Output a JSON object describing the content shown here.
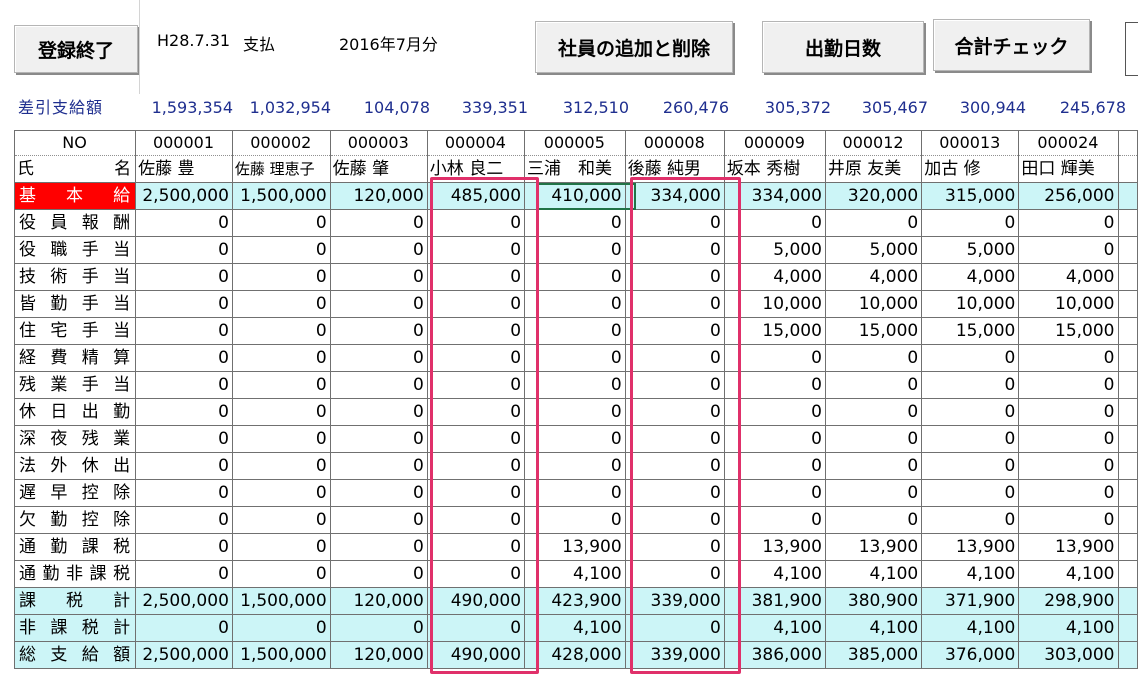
{
  "toolbar": {
    "register_done": "登録終了",
    "date_label": "H28.7.31",
    "pay_label": "支払",
    "period_label": "2016年7月分",
    "add_remove_employee": "社員の追加と削除",
    "attendance_days": "出勤日数",
    "total_check": "合計チェック"
  },
  "net_pay": {
    "label": "差引支給額",
    "values": [
      "1,593,354",
      "1,032,954",
      "104,078",
      "339,351",
      "312,510",
      "260,476",
      "305,372",
      "305,467",
      "300,944",
      "245,678"
    ]
  },
  "sheet": {
    "no_label": "NO",
    "name_label": [
      "氏",
      "名"
    ],
    "employee_ids": [
      "000001",
      "000002",
      "000003",
      "000004",
      "000005",
      "000008",
      "000009",
      "000012",
      "000013",
      "000024"
    ],
    "employee_names": [
      "佐藤 豊",
      "佐藤 理恵子",
      "佐藤 肇",
      "小林 良二",
      "三浦　和美",
      "後藤 純男",
      "坂本 秀樹",
      "井原 友美",
      "加古 修",
      "田口 輝美"
    ],
    "rows": [
      {
        "label": "基本給",
        "values": [
          "2,500,000",
          "1,500,000",
          "120,000",
          "485,000",
          "410,000",
          "334,000",
          "334,000",
          "320,000",
          "315,000",
          "256,000"
        ]
      },
      {
        "label": "役員報酬",
        "values": [
          "0",
          "0",
          "0",
          "0",
          "0",
          "0",
          "0",
          "0",
          "0",
          "0"
        ]
      },
      {
        "label": "役職手当",
        "values": [
          "0",
          "0",
          "0",
          "0",
          "0",
          "0",
          "5,000",
          "5,000",
          "5,000",
          "0"
        ]
      },
      {
        "label": "技術手当",
        "values": [
          "0",
          "0",
          "0",
          "0",
          "0",
          "0",
          "4,000",
          "4,000",
          "4,000",
          "4,000"
        ]
      },
      {
        "label": "皆勤手当",
        "values": [
          "0",
          "0",
          "0",
          "0",
          "0",
          "0",
          "10,000",
          "10,000",
          "10,000",
          "10,000"
        ]
      },
      {
        "label": "住宅手当",
        "values": [
          "0",
          "0",
          "0",
          "0",
          "0",
          "0",
          "15,000",
          "15,000",
          "15,000",
          "15,000"
        ]
      },
      {
        "label": "経費精算",
        "values": [
          "0",
          "0",
          "0",
          "0",
          "0",
          "0",
          "0",
          "0",
          "0",
          "0"
        ]
      },
      {
        "label": "残業手当",
        "values": [
          "0",
          "0",
          "0",
          "0",
          "0",
          "0",
          "0",
          "0",
          "0",
          "0"
        ]
      },
      {
        "label": "休日出勤",
        "values": [
          "0",
          "0",
          "0",
          "0",
          "0",
          "0",
          "0",
          "0",
          "0",
          "0"
        ]
      },
      {
        "label": "深夜残業",
        "values": [
          "0",
          "0",
          "0",
          "0",
          "0",
          "0",
          "0",
          "0",
          "0",
          "0"
        ]
      },
      {
        "label": "法外休出",
        "values": [
          "0",
          "0",
          "0",
          "0",
          "0",
          "0",
          "0",
          "0",
          "0",
          "0"
        ]
      },
      {
        "label": "遅早控除",
        "values": [
          "0",
          "0",
          "0",
          "0",
          "0",
          "0",
          "0",
          "0",
          "0",
          "0"
        ]
      },
      {
        "label": "欠勤控除",
        "values": [
          "0",
          "0",
          "0",
          "0",
          "0",
          "0",
          "0",
          "0",
          "0",
          "0"
        ]
      },
      {
        "label": "通勤課税",
        "values": [
          "0",
          "0",
          "0",
          "0",
          "13,900",
          "0",
          "13,900",
          "13,900",
          "13,900",
          "13,900"
        ]
      },
      {
        "label": "通勤非課税",
        "values": [
          "0",
          "0",
          "0",
          "0",
          "4,100",
          "0",
          "4,100",
          "4,100",
          "4,100",
          "4,100"
        ]
      },
      {
        "label": "課税計",
        "values": [
          "2,500,000",
          "1,500,000",
          "120,000",
          "490,000",
          "423,900",
          "339,000",
          "381,900",
          "380,900",
          "371,900",
          "298,900"
        ]
      },
      {
        "label": "非課税計",
        "values": [
          "0",
          "0",
          "0",
          "0",
          "4,100",
          "0",
          "4,100",
          "4,100",
          "4,100",
          "4,100"
        ]
      },
      {
        "label": "総支給額",
        "values": [
          "2,500,000",
          "1,500,000",
          "120,000",
          "490,000",
          "428,000",
          "339,000",
          "386,000",
          "385,000",
          "376,000",
          "303,000"
        ]
      }
    ]
  },
  "colors": {
    "highlight": "#e0306a",
    "cyan_rows": "#ccf5f7",
    "red_label": "#ff0000",
    "net_pay_text": "#1f2f8f"
  }
}
